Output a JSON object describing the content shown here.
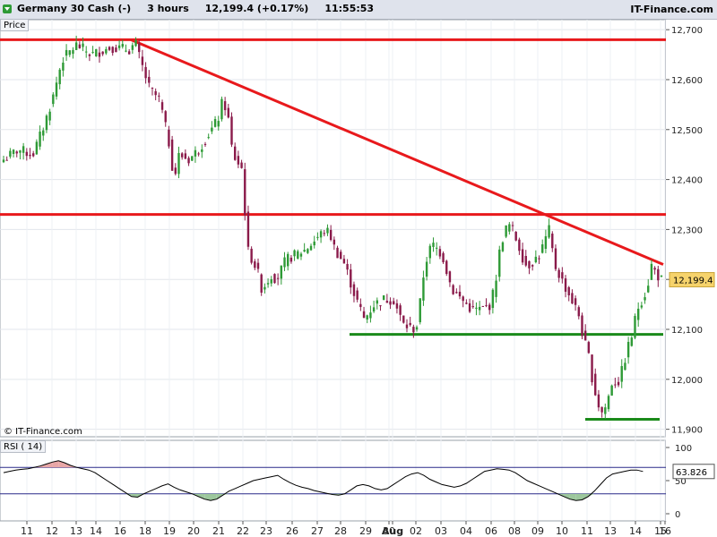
{
  "header": {
    "instrument": "Germany 30 Cash (-)",
    "timeframe": "3 hours",
    "price_change": "12,199.4 (+0.17%)",
    "time": "11:55:53",
    "brand": "IT-Finance.com"
  },
  "price_panel_label": "Price",
  "copyright": "© IT-Finance.com",
  "rsi_panel_label": "RSI ( 14)",
  "current_price_label": "12,199.4",
  "current_rsi_label": "63.826",
  "colors": {
    "resistance_line": "#e8191c",
    "support_line": "#1a8a1a",
    "bull_candle": "#2e9a36",
    "bear_candle": "#8a1a4a",
    "rsi_line": "#000000",
    "rsi_level_line": "#2a2a8a",
    "rsi_overbought_fill": "#e8a6a6",
    "rsi_oversold_fill": "#9cc79c",
    "price_badge": "#f6d36b"
  },
  "chart_data": [
    {
      "type": "candlestick",
      "title": "",
      "ylim": [
        11885,
        12720
      ],
      "y_ticks": [
        "12,700",
        "12,600",
        "12,500",
        "12,400",
        "12,300",
        "12,200",
        "12,100",
        "12,000",
        "11,900"
      ],
      "x_ticks": [
        "11",
        "12",
        "13",
        "14",
        "16",
        "18",
        "19",
        "20",
        "21",
        "22",
        "23",
        "26",
        "27",
        "28",
        "29",
        "30",
        "Aug",
        "02",
        "03",
        "04",
        "06",
        "08",
        "09",
        "10",
        "11",
        "13",
        "14",
        "15",
        "16"
      ],
      "close_path": [
        [
          0,
          12440
        ],
        [
          3,
          12460
        ],
        [
          6,
          12450
        ],
        [
          8,
          12500
        ],
        [
          10,
          12560
        ],
        [
          12,
          12640
        ],
        [
          15,
          12670
        ],
        [
          18,
          12650
        ],
        [
          22,
          12665
        ],
        [
          26,
          12660
        ],
        [
          27,
          12675
        ],
        [
          28,
          12640
        ],
        [
          30,
          12580
        ],
        [
          32,
          12560
        ],
        [
          34,
          12470
        ],
        [
          35,
          12400
        ],
        [
          36,
          12450
        ],
        [
          38,
          12440
        ],
        [
          40,
          12460
        ],
        [
          42,
          12490
        ],
        [
          44,
          12520
        ],
        [
          45,
          12560
        ],
        [
          46,
          12530
        ],
        [
          47,
          12450
        ],
        [
          49,
          12420
        ],
        [
          50,
          12260
        ],
        [
          52,
          12220
        ],
        [
          53,
          12180
        ],
        [
          55,
          12210
        ],
        [
          56,
          12200
        ],
        [
          58,
          12240
        ],
        [
          60,
          12250
        ],
        [
          62,
          12260
        ],
        [
          64,
          12280
        ],
        [
          66,
          12300
        ],
        [
          67,
          12290
        ],
        [
          68,
          12260
        ],
        [
          70,
          12230
        ],
        [
          72,
          12170
        ],
        [
          74,
          12120
        ],
        [
          76,
          12150
        ],
        [
          78,
          12160
        ],
        [
          80,
          12160
        ],
        [
          82,
          12110
        ],
        [
          84,
          12100
        ],
        [
          85,
          12110
        ],
        [
          86,
          12200
        ],
        [
          87,
          12250
        ],
        [
          88,
          12270
        ],
        [
          90,
          12250
        ],
        [
          92,
          12180
        ],
        [
          94,
          12160
        ],
        [
          96,
          12140
        ],
        [
          98,
          12140
        ],
        [
          100,
          12150
        ],
        [
          101,
          12200
        ],
        [
          102,
          12270
        ],
        [
          103,
          12300
        ],
        [
          104,
          12310
        ],
        [
          106,
          12260
        ],
        [
          107,
          12230
        ],
        [
          108,
          12230
        ],
        [
          110,
          12250
        ],
        [
          112,
          12300
        ],
        [
          113,
          12230
        ],
        [
          114,
          12210
        ],
        [
          116,
          12170
        ],
        [
          118,
          12130
        ],
        [
          119,
          12080
        ],
        [
          120,
          12050
        ],
        [
          121,
          11990
        ],
        [
          122,
          11950
        ],
        [
          123,
          11930
        ],
        [
          124,
          11960
        ],
        [
          125,
          12000
        ],
        [
          126,
          11990
        ],
        [
          127,
          12020
        ],
        [
          128,
          12060
        ],
        [
          129,
          12090
        ],
        [
          130,
          12140
        ],
        [
          131,
          12160
        ],
        [
          132,
          12180
        ],
        [
          133,
          12230
        ],
        [
          134,
          12210
        ],
        [
          135,
          12199.4
        ]
      ],
      "annotations": {
        "resistance_top": 12680,
        "resistance_mid": 12330,
        "downtrend_line": [
          [
            12680,
            12230
          ]
        ],
        "support_1": 12090,
        "support_2": 11920
      }
    },
    {
      "type": "line",
      "title": "RSI ( 14)",
      "ylim": [
        0,
        100
      ],
      "y_ticks": [
        "100",
        "50",
        "0"
      ],
      "levels": [
        70,
        30
      ],
      "last_value": 63.826,
      "values": [
        62,
        64,
        66,
        67,
        68,
        70,
        72,
        75,
        78,
        80,
        77,
        73,
        70,
        68,
        66,
        62,
        56,
        50,
        44,
        38,
        32,
        26,
        25,
        30,
        34,
        38,
        42,
        45,
        40,
        36,
        33,
        30,
        26,
        22,
        20,
        22,
        28,
        34,
        38,
        42,
        46,
        50,
        52,
        54,
        56,
        58,
        52,
        47,
        43,
        40,
        38,
        35,
        33,
        31,
        29,
        28,
        30,
        36,
        42,
        44,
        42,
        38,
        36,
        38,
        44,
        50,
        56,
        60,
        62,
        58,
        52,
        48,
        44,
        42,
        40,
        42,
        46,
        52,
        58,
        64,
        66,
        68,
        67,
        66,
        62,
        56,
        50,
        46,
        42,
        38,
        34,
        30,
        26,
        22,
        20,
        21,
        26,
        34,
        44,
        54,
        60,
        62,
        64,
        66,
        66,
        63.8
      ]
    }
  ]
}
